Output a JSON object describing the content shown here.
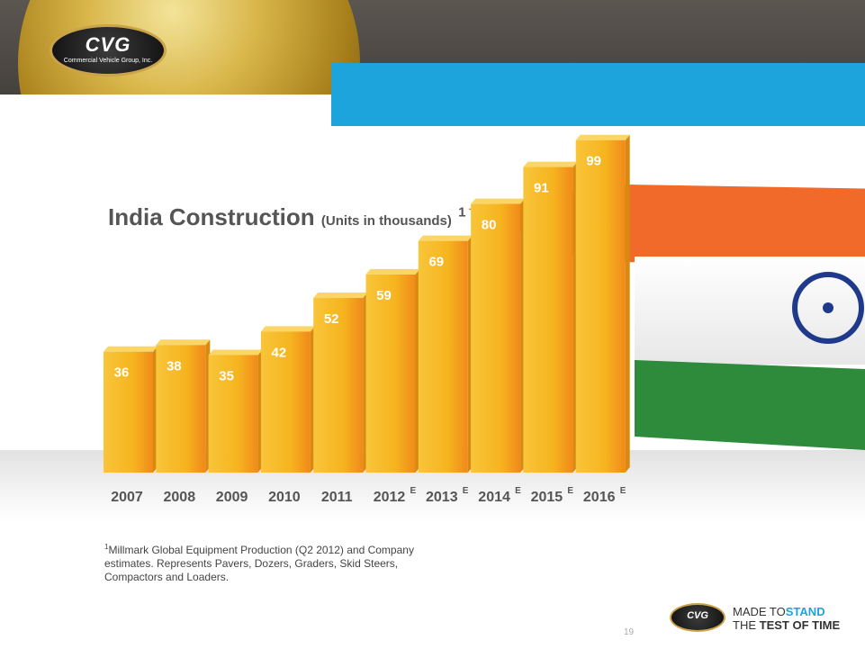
{
  "header": {
    "logo_text": "CVG",
    "logo_subtext": "Commercial Vehicle Group, Inc."
  },
  "chart_data": {
    "type": "bar",
    "title": "India Construction",
    "subtitle": "(Units in thousands)",
    "footnote_marker": "1",
    "categories": [
      "2007",
      "2008",
      "2009",
      "2010",
      "2011",
      "2012",
      "2013",
      "2014",
      "2015",
      "2016"
    ],
    "category_superscripts": [
      "",
      "",
      "",
      "",
      "",
      "E",
      "E",
      "E",
      "E",
      "E"
    ],
    "values": [
      36,
      38,
      35,
      42,
      52,
      59,
      69,
      80,
      91,
      99
    ],
    "data_labels": [
      "36",
      "38",
      "35",
      "42",
      "52",
      "59",
      "69",
      "80",
      "91",
      "99"
    ],
    "ylim": [
      0,
      100
    ],
    "grid": false,
    "legend": "none",
    "bar_color": "#f6b41f"
  },
  "footnote": {
    "marker": "1",
    "text": "Millmark Global Equipment Production (Q2 2012) and Company estimates.  Represents Pavers, Dozers, Graders, Skid Steers, Compactors and Loaders."
  },
  "page_number": "19",
  "footer": {
    "logo_text": "CVG",
    "tagline_prefix": "MADE TO",
    "tagline_emphasis": "STAND",
    "tagline_line2_prefix": "THE",
    "tagline_line2_emphasis": "TEST OF TIME"
  },
  "colors": {
    "accent_blue": "#1ea4dc",
    "header_gray": "#4e4a44",
    "bar": "#f6b41f"
  }
}
